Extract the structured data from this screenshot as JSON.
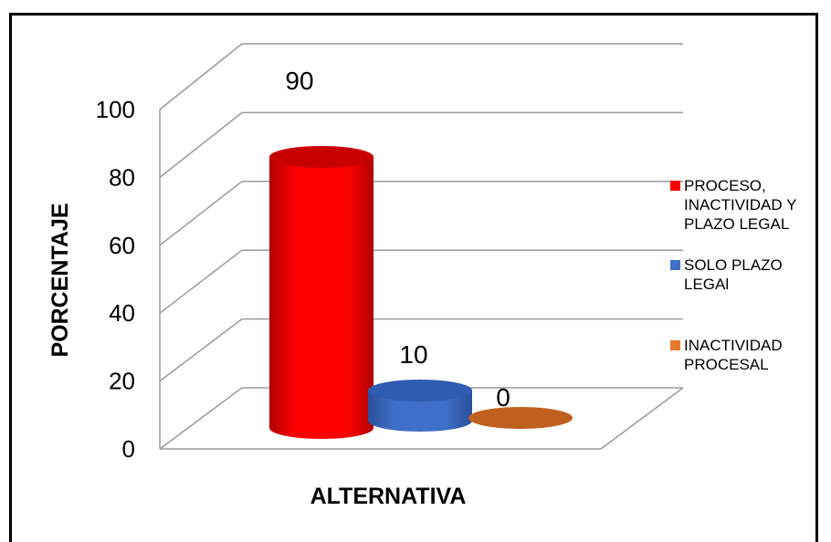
{
  "chart_data": {
    "type": "bar",
    "categories": [
      "PROCESO, INACTIVIDAD Y PLAZO LEGAL",
      "SOLO PLAZO LEGAl",
      "INACTIVIDAD PROCESAL"
    ],
    "values": [
      90,
      10,
      0
    ],
    "data_labels": [
      "90",
      "10",
      "0"
    ],
    "colors": [
      "#ff0000",
      "#3f6fc8",
      "#e8772e"
    ],
    "title": "",
    "xlabel": "ALTERNATIVA",
    "ylabel": "PORCENTAJE",
    "ylim": [
      0,
      100
    ],
    "yticks": [
      "0",
      "20",
      "40",
      "60",
      "80",
      "100"
    ],
    "grid": true,
    "three_d": true,
    "legend": {
      "position": "right",
      "entries": [
        {
          "lines": [
            "PROCESO,",
            "INACTIVIDAD Y",
            "PLAZO LEGAL"
          ]
        },
        {
          "lines": [
            "SOLO PLAZO",
            "LEGAl"
          ]
        },
        {
          "lines": [
            "INACTIVIDAD",
            "PROCESAL"
          ]
        }
      ]
    }
  }
}
